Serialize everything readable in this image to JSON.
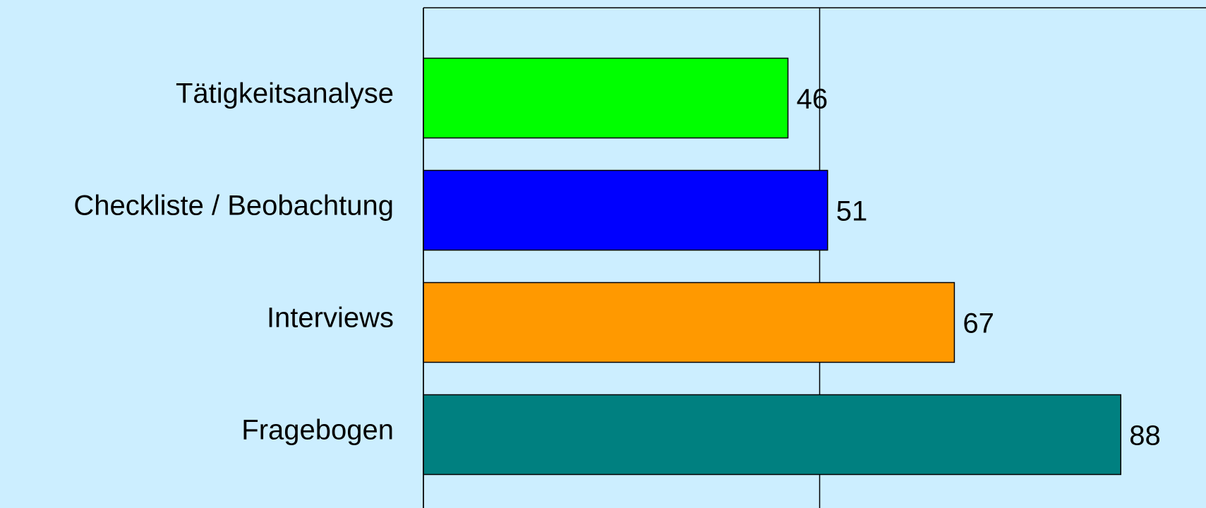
{
  "chart_data": {
    "type": "barh",
    "categories": [
      "Tätigkeitsanalyse",
      "Checkliste / Beobachtung",
      "Interviews",
      "Fragebogen"
    ],
    "series": [
      {
        "values": [
          46,
          51,
          67,
          88
        ],
        "colors": [
          "#00ff00",
          "#0000ff",
          "#ff9900",
          "#008080"
        ]
      }
    ],
    "xlim": [
      0,
      100
    ],
    "xticks": [
      0,
      50
    ],
    "grid": true,
    "background": "#cceeff"
  }
}
